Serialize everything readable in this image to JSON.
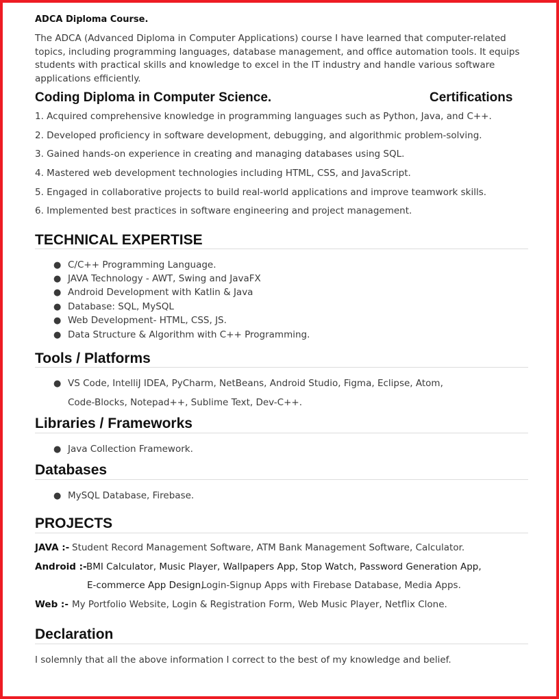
{
  "adca": {
    "title": "ADCA Diploma Course.",
    "paragraph": "The ADCA (Advanced Diploma in Computer Applications) course I have learned that computer-related topics, including programming languages, database management, and office automation tools. It equips students with practical skills and knowledge to excel in the IT industry and handle various software applications efficiently."
  },
  "coding_diploma": {
    "title": "Coding Diploma in Computer Science.",
    "side_label": "Certifications",
    "items": [
      "1. Acquired comprehensive knowledge in programming languages such as Python, Java, and C++.",
      "2. Developed proficiency in software development, debugging, and algorithmic problem-solving.",
      "3. Gained hands-on experience in creating and managing databases using SQL.",
      "4. Mastered web development technologies including HTML, CSS, and JavaScript.",
      "5. Engaged in collaborative projects to build real-world applications and improve teamwork skills.",
      "6. Implemented best practices in software engineering and project management."
    ]
  },
  "technical": {
    "heading": "TECHNICAL EXPERTISE",
    "items": [
      "C/C++ Programming Language.",
      "JAVA Technology - AWT, Swing and JavaFX",
      "Android Development with Katlin & Java",
      "Database: SQL, MySQL",
      "Web Development- HTML, CSS, JS.",
      "Data Structure & Algorithm with C++ Programming."
    ]
  },
  "tools": {
    "heading": "Tools / Platforms",
    "line1": "VS Code, IntelliJ IDEA, PyCharm, NetBeans, Android Studio, Figma, Eclipse, Atom,",
    "line2": "Code-Blocks, Notepad++, Sublime Text, Dev-C++."
  },
  "libraries": {
    "heading": "Libraries / Frameworks",
    "item": "Java Collection Framework."
  },
  "databases": {
    "heading": "Databases",
    "item": "MySQL Database, Firebase."
  },
  "projects": {
    "heading": "PROJECTS",
    "java_label": "JAVA :-",
    "java_text": "Student Record Management Software, ATM Bank Management Software, Calculator.",
    "android_label": "Android :-",
    "android_line1": "BMI Calculator, Music Player, Wallpapers App, Stop Watch, Password Generation App,",
    "android_line2a": "E-commerce App Design,",
    "android_line2b": "Login-Signup Apps with Firebase Database, Media Apps.",
    "web_label": "Web :-",
    "web_text": "My Portfolio Website, Login & Registration Form, Web Music Player, Netflix Clone."
  },
  "declaration": {
    "heading": "Declaration",
    "text": "I solemnly that all the above information I correct to the best of my knowledge and belief."
  },
  "colors": {
    "border": "#ee1c24",
    "rule": "#dcdcdc"
  }
}
